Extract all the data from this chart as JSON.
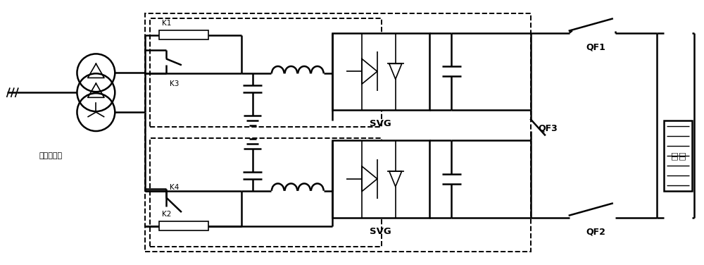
{
  "bg_color": "#ffffff",
  "lc": "#000000",
  "lw": 1.8,
  "lw_thin": 1.2,
  "label_transformer": "整流变压器",
  "label_SVG1": "SVG",
  "label_SVG2": "SVG",
  "label_QF1": "QF1",
  "label_QF2": "QF2",
  "label_QF3": "QF3",
  "label_K1": "K1",
  "label_K2": "K2",
  "label_K3": "K3",
  "label_K4": "K4",
  "label_ice": "融冰\n线路"
}
